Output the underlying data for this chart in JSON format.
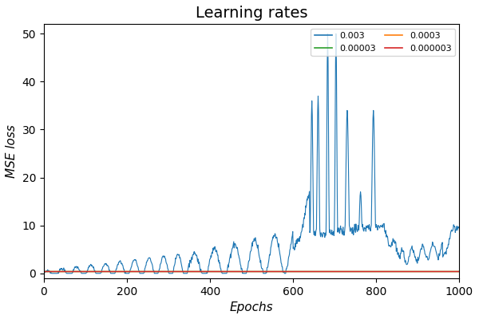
{
  "title": "Learning rates",
  "xlabel": "Epochs",
  "ylabel": "MSE loss",
  "xlim": [
    0,
    1000
  ],
  "ylim": [
    -1,
    52
  ],
  "yticks": [
    0,
    10,
    20,
    30,
    40,
    50
  ],
  "xticks": [
    0,
    200,
    400,
    600,
    800,
    1000
  ],
  "legend_labels": [
    "0.003",
    "0.0003",
    "0.00003",
    "0.000003"
  ],
  "line_colors": [
    "#1f77b4",
    "#ff7f0e",
    "#2ca02c",
    "#d62728"
  ],
  "n_epochs": 1001,
  "figsize": [
    6.0,
    4.0
  ],
  "dpi": 100,
  "title_fontsize": 14,
  "axis_fontsize": 11
}
